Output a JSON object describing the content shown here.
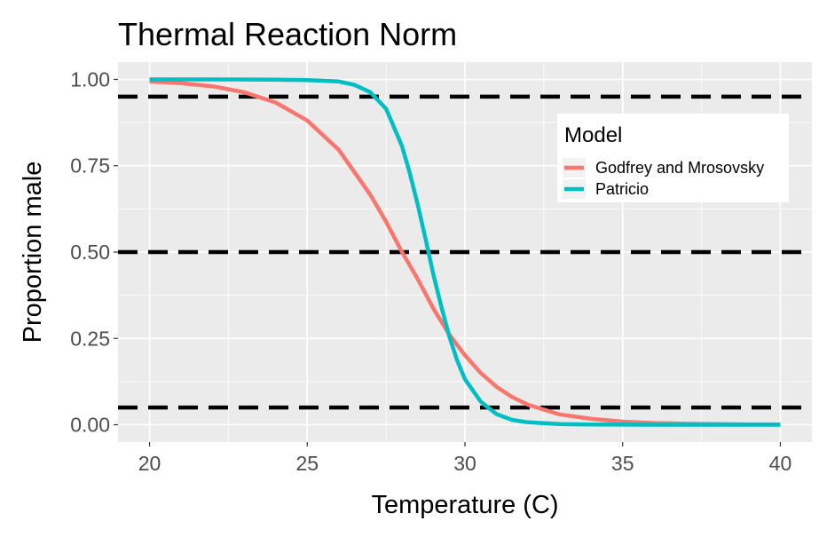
{
  "chart_data": {
    "type": "line",
    "title": "Thermal Reaction Norm",
    "xlabel": "Temperature (C)",
    "ylabel": "Proportion male",
    "xlim": [
      19,
      41
    ],
    "ylim": [
      -0.05,
      1.05
    ],
    "x_ticks": [
      20,
      25,
      30,
      35,
      40
    ],
    "y_ticks": [
      0,
      0.25,
      0.5,
      0.75,
      1
    ],
    "x_tick_labels": [
      "20",
      "25",
      "30",
      "35",
      "40"
    ],
    "y_tick_labels": [
      "0.00",
      "0.25",
      "0.50",
      "0.75",
      "1.00"
    ],
    "grid": true,
    "background": "#ebebeb",
    "legend": {
      "title": "Model",
      "position": "top-right"
    },
    "reference_lines": [
      {
        "y": 0.95,
        "style": "dashed",
        "color": "#000000"
      },
      {
        "y": 0.5,
        "style": "dashed",
        "color": "#000000"
      },
      {
        "y": 0.05,
        "style": "dashed",
        "color": "#000000"
      }
    ],
    "series": [
      {
        "name": "Godfrey and Mrosovsky",
        "color": "#f8766d",
        "x": [
          20,
          21,
          22,
          23,
          24,
          25,
          26,
          27,
          27.5,
          28,
          28.5,
          29,
          29.5,
          30,
          30.5,
          31,
          31.5,
          32,
          33,
          34,
          35,
          36,
          37,
          38,
          39,
          40
        ],
        "y": [
          0.994,
          0.989,
          0.98,
          0.963,
          0.933,
          0.881,
          0.796,
          0.666,
          0.588,
          0.501,
          0.422,
          0.336,
          0.262,
          0.201,
          0.15,
          0.11,
          0.08,
          0.058,
          0.03,
          0.017,
          0.009,
          0.005,
          0.003,
          0.002,
          0.001,
          0.001
        ]
      },
      {
        "name": "Patricio",
        "color": "#00bfc4",
        "x": [
          20,
          22,
          24,
          25,
          26,
          26.5,
          27,
          27.5,
          28,
          28.25,
          28.5,
          28.75,
          29,
          29.25,
          29.5,
          29.75,
          30,
          30.5,
          31,
          31.5,
          32,
          33,
          34,
          36,
          38,
          40
        ],
        "y": [
          1.0,
          1.0,
          0.999,
          0.998,
          0.994,
          0.984,
          0.963,
          0.915,
          0.808,
          0.729,
          0.638,
          0.538,
          0.434,
          0.343,
          0.257,
          0.187,
          0.132,
          0.067,
          0.031,
          0.014,
          0.007,
          0.002,
          0.001,
          0.0,
          0.0,
          0.0
        ]
      }
    ]
  }
}
